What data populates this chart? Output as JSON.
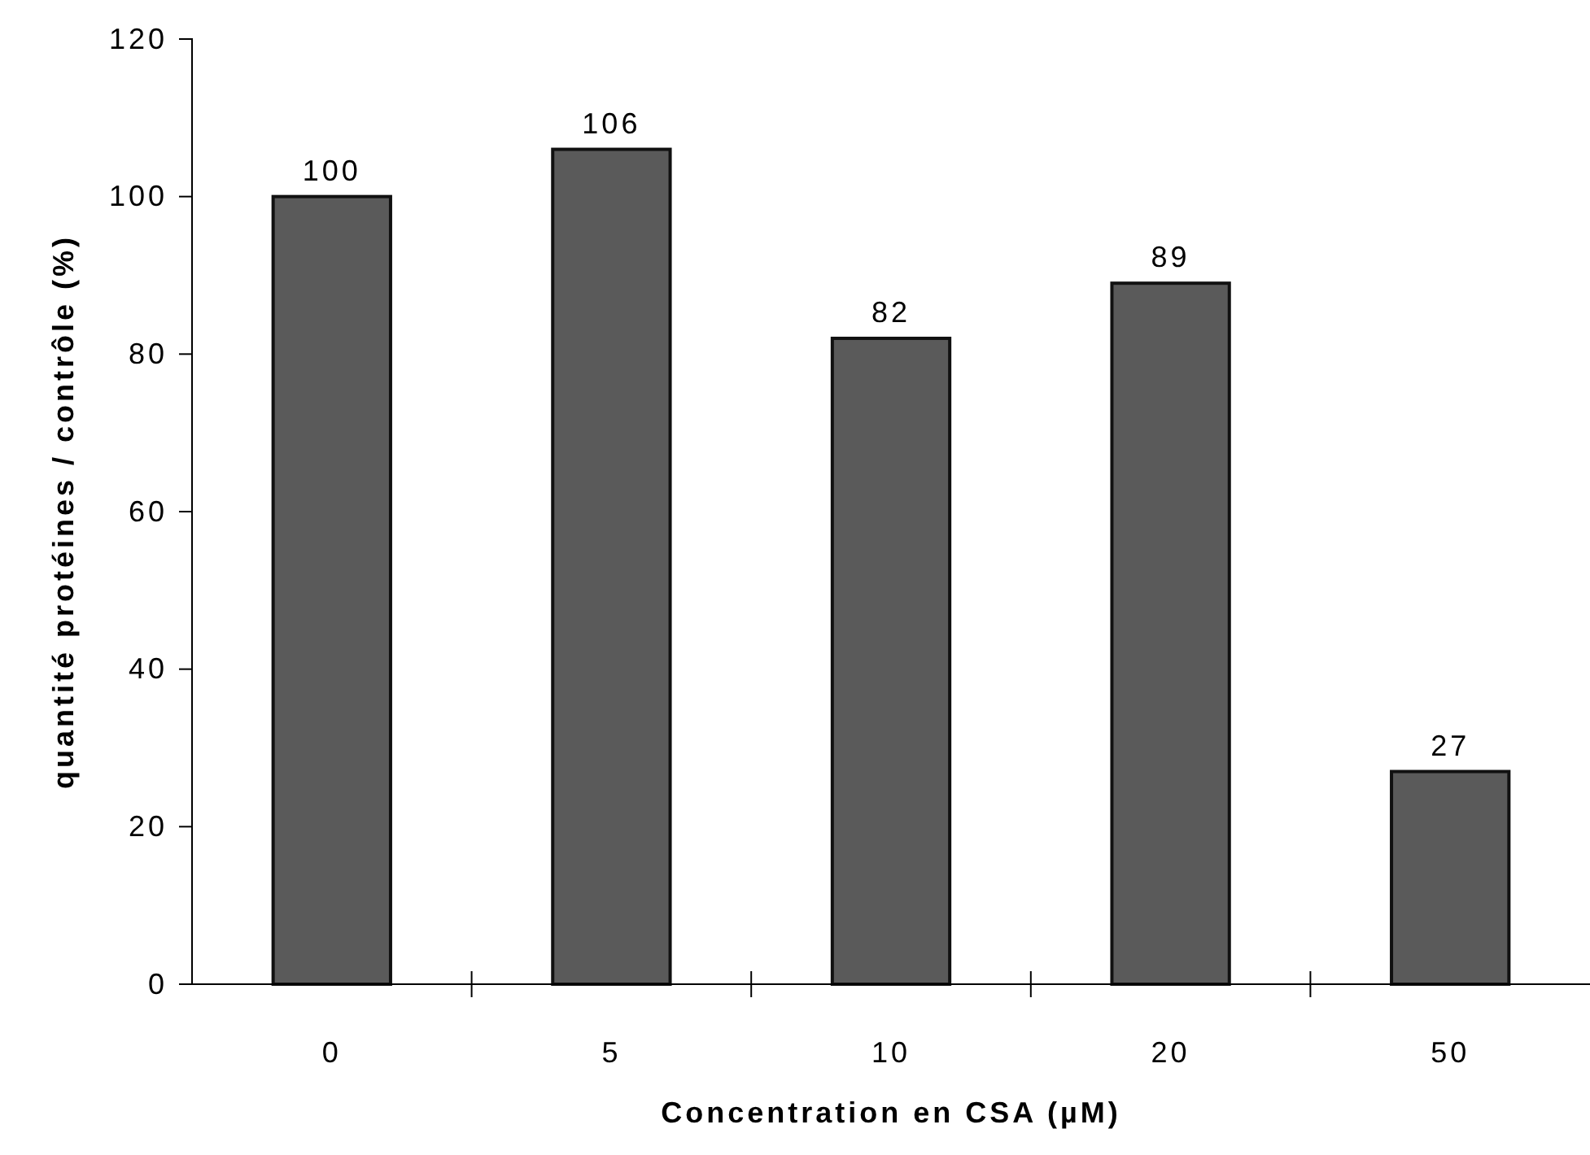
{
  "chart_data": {
    "type": "bar",
    "xlabel": "Concentration en CSA (µM)",
    "ylabel": "quantité protéines / contrôle (%)",
    "categories": [
      "0",
      "5",
      "10",
      "20",
      "50"
    ],
    "values": [
      100,
      106,
      82,
      89,
      27
    ],
    "color": "#5a5a5a",
    "ylim": [
      0,
      120
    ],
    "yticks": [
      0,
      20,
      40,
      60,
      80,
      100,
      120
    ],
    "data_labels": true
  }
}
